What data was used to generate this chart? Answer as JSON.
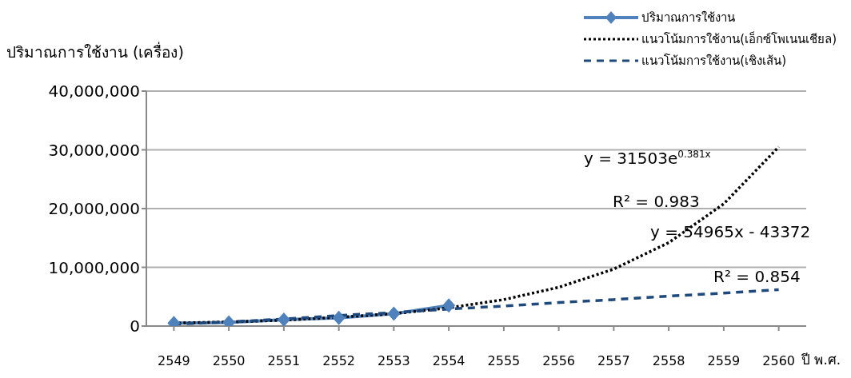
{
  "chart_data": {
    "type": "line",
    "ylabel": "ปริมาณการใช้งาน (เครื่อง)",
    "xlabel": "ปี พ.ศ.",
    "categories": [
      "2549",
      "2550",
      "2551",
      "2552",
      "2553",
      "2554",
      "2555",
      "2556",
      "2557",
      "2558",
      "2559",
      "2560"
    ],
    "series": [
      {
        "name": "ปริมาณการใช้งาน",
        "color": "#4f81bd",
        "marker": "diamond",
        "line_style": "solid",
        "values": [
          500000,
          600000,
          1100000,
          1400000,
          2100000,
          3500000,
          null,
          null,
          null,
          null,
          null,
          null
        ]
      },
      {
        "name": "แนวโน้มการใช้งาน(เอ็กซ์โพเนนเชียล)",
        "color": "#000000",
        "marker": "none",
        "line_style": "dotted",
        "values": [
          500000,
          700000,
          1000000,
          1500000,
          2100000,
          3100000,
          4500000,
          6600000,
          9700000,
          14200000,
          20800000,
          30500000
        ]
      },
      {
        "name": "แนวโน้มการใช้งาน(เชิงเส้น)",
        "color": "#1f497d",
        "marker": "none",
        "line_style": "dashed",
        "values": [
          300000,
          700000,
          1200000,
          1800000,
          2300000,
          2900000,
          3400000,
          4000000,
          4500000,
          5100000,
          5600000,
          6200000
        ]
      }
    ],
    "ylim": [
      0,
      40000000
    ],
    "yticks": [
      {
        "value": 0,
        "label": "0"
      },
      {
        "value": 10000000,
        "label": "10,000,000"
      },
      {
        "value": 20000000,
        "label": "20,000,000"
      },
      {
        "value": 30000000,
        "label": "30,000,000"
      },
      {
        "value": 40000000,
        "label": "40,000,000"
      }
    ],
    "grid": "y",
    "legend": "top right",
    "annotations": [
      "y = 31503e$^{0.381x}$",
      "R² = 0.983",
      "y = 54965x - 43372",
      "R² = 0.854"
    ]
  }
}
